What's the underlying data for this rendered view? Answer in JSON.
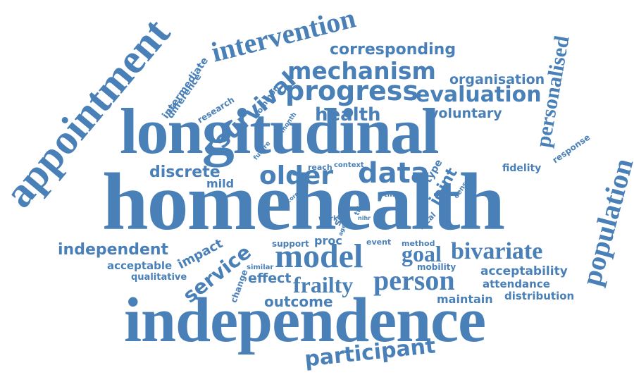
{
  "color": "#4a80b8",
  "words": [
    "homehealth",
    "longitudinal",
    "independence",
    "appointment",
    "intervention",
    "corresponding",
    "mechanism",
    "progress",
    "evaluation",
    "organisation",
    "personalised",
    "population",
    "survival",
    "health",
    "voluntary",
    "intermediate",
    "difference",
    "research",
    "common",
    "month",
    "future",
    "discrete",
    "mild",
    "older",
    "data",
    "reach",
    "context",
    "type",
    "joint",
    "census",
    "fidelity",
    "response",
    "score",
    "sector",
    "time",
    "trial",
    "nihr",
    "work",
    "aged",
    "local",
    "independent",
    "impact",
    "service",
    "support",
    "proc",
    "event",
    "method",
    "model",
    "goal",
    "bivariate",
    "acceptable",
    "qualitative",
    "similar",
    "mobility",
    "acceptability",
    "change",
    "effect",
    "frailty",
    "person",
    "attendance",
    "distribution",
    "maintain",
    "outcome",
    "participant"
  ]
}
